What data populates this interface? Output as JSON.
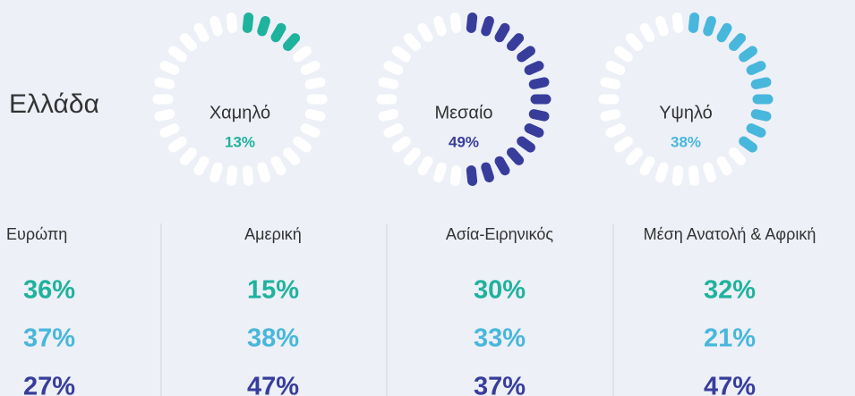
{
  "heading": "Ελλάδα",
  "gauges": [
    {
      "label": "Χαμηλό",
      "value": 13,
      "value_label": "13%",
      "color": "#1fb29d"
    },
    {
      "label": "Μεσαίο",
      "value": 49,
      "value_label": "49%",
      "color": "#383d9c"
    },
    {
      "label": "Υψηλό",
      "value": 38,
      "value_label": "38%",
      "color": "#48b7dc"
    }
  ],
  "regions": {
    "row_colors": [
      "#1fb29d",
      "#48b7dc",
      "#383d9c"
    ],
    "columns": [
      {
        "name": "Ευρώπη",
        "values": [
          "36%",
          "37%",
          "27%"
        ]
      },
      {
        "name": "Αμερική",
        "values": [
          "15%",
          "38%",
          "47%"
        ]
      },
      {
        "name": "Ασία-Ειρηνικός",
        "values": [
          "30%",
          "33%",
          "37%"
        ]
      },
      {
        "name": "Μέση Ανατολή & Αφρική",
        "values": [
          "32%",
          "21%",
          "47%"
        ]
      }
    ]
  }
}
